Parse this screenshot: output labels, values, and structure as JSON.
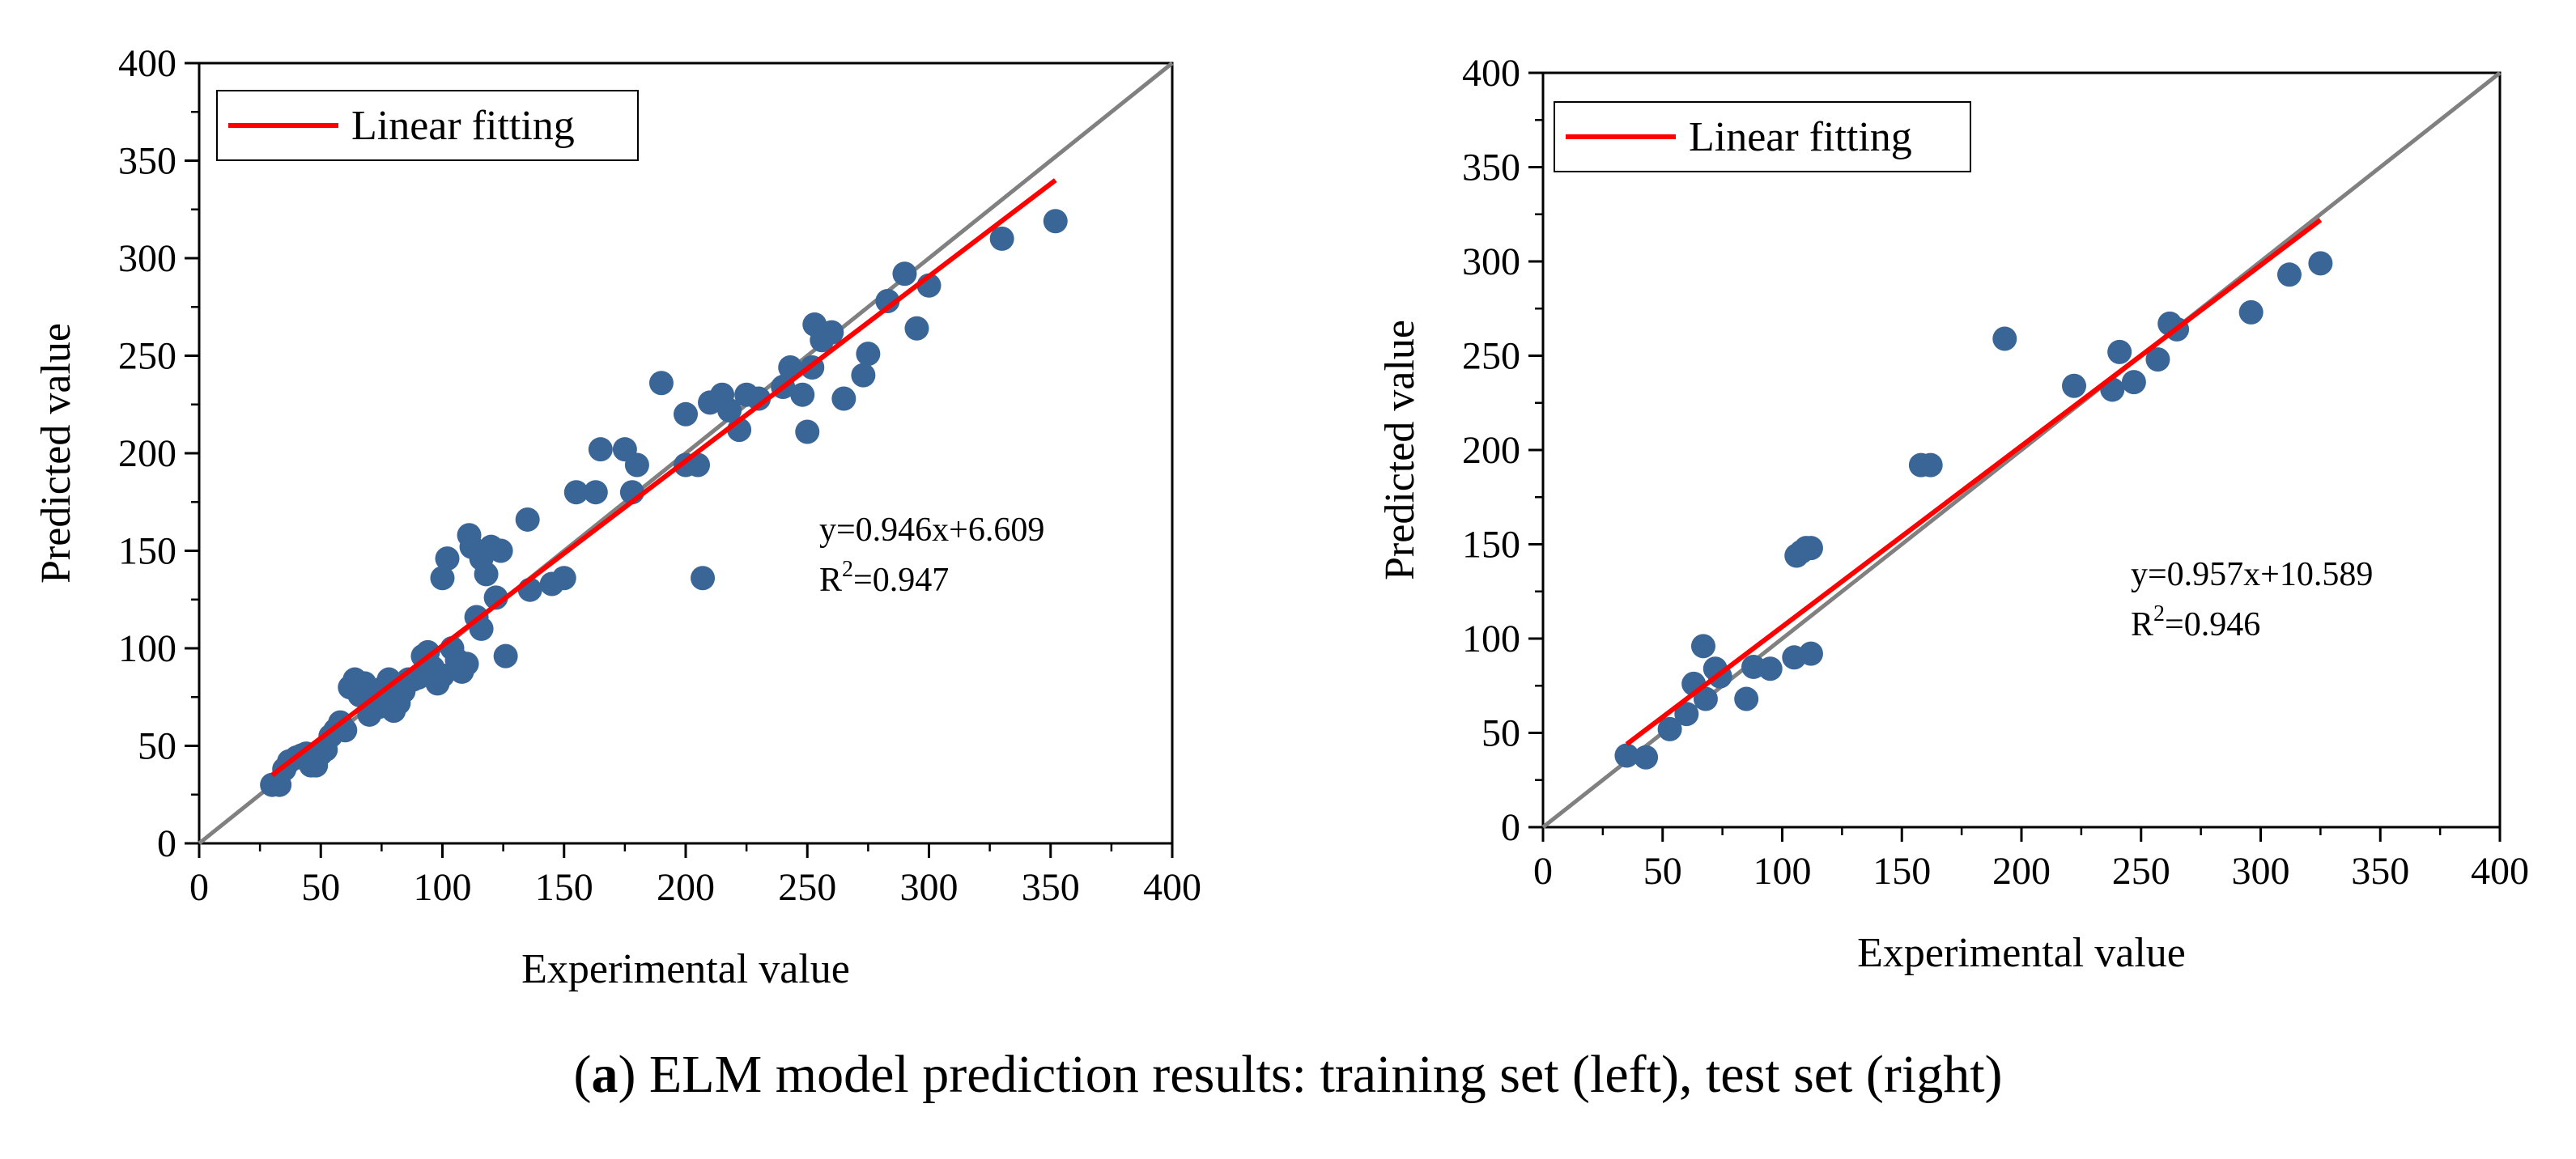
{
  "caption": {
    "open_paren": "(",
    "letter": "a",
    "text": ") ELM model prediction results: training set (left), test set (right)"
  },
  "chart_data": [
    {
      "type": "scatter",
      "title": "",
      "xlabel": "Experimental value",
      "ylabel": "Predicted value",
      "xlim": [
        0,
        400
      ],
      "ylim": [
        0,
        400
      ],
      "ticks": [
        0,
        50,
        100,
        150,
        200,
        250,
        300,
        350,
        400
      ],
      "grid": false,
      "legend": {
        "position": "top-left",
        "entries": [
          "Linear fitting"
        ]
      },
      "colors": {
        "points": "#3a6597",
        "fit": "#ff0000",
        "reference": "#808080"
      },
      "equation": {
        "line1": "y=0.946x+6.609",
        "r2_prefix": "R",
        "r2_sup": "2",
        "r2_value": "=0.947"
      },
      "fit_line": {
        "x": [
          30,
          352
        ],
        "y": [
          35,
          340
        ]
      },
      "reference_line": {
        "x": [
          0,
          400
        ],
        "y": [
          0,
          400
        ]
      },
      "points": [
        [
          30,
          30
        ],
        [
          33,
          30
        ],
        [
          35,
          38
        ],
        [
          37,
          42
        ],
        [
          40,
          44
        ],
        [
          42,
          45
        ],
        [
          44,
          46
        ],
        [
          46,
          40
        ],
        [
          48,
          40
        ],
        [
          50,
          46
        ],
        [
          52,
          48
        ],
        [
          54,
          55
        ],
        [
          56,
          58
        ],
        [
          58,
          62
        ],
        [
          60,
          58
        ],
        [
          62,
          80
        ],
        [
          64,
          84
        ],
        [
          66,
          76
        ],
        [
          68,
          82
        ],
        [
          70,
          66
        ],
        [
          72,
          78
        ],
        [
          74,
          70
        ],
        [
          76,
          80
        ],
        [
          78,
          84
        ],
        [
          80,
          68
        ],
        [
          82,
          72
        ],
        [
          84,
          78
        ],
        [
          86,
          84
        ],
        [
          88,
          84
        ],
        [
          90,
          85
        ],
        [
          92,
          96
        ],
        [
          94,
          98
        ],
        [
          96,
          90
        ],
        [
          98,
          82
        ],
        [
          100,
          86
        ],
        [
          100,
          136
        ],
        [
          102,
          146
        ],
        [
          104,
          100
        ],
        [
          106,
          94
        ],
        [
          108,
          88
        ],
        [
          110,
          92
        ],
        [
          111,
          158
        ],
        [
          112,
          152
        ],
        [
          114,
          116
        ],
        [
          116,
          110
        ],
        [
          116,
          146
        ],
        [
          118,
          138
        ],
        [
          120,
          152
        ],
        [
          122,
          126
        ],
        [
          124,
          150
        ],
        [
          126,
          96
        ],
        [
          135,
          166
        ],
        [
          136,
          130
        ],
        [
          145,
          133
        ],
        [
          150,
          136
        ],
        [
          155,
          180
        ],
        [
          163,
          180
        ],
        [
          165,
          202
        ],
        [
          175,
          202
        ],
        [
          178,
          180
        ],
        [
          180,
          194
        ],
        [
          190,
          236
        ],
        [
          200,
          194
        ],
        [
          200,
          220
        ],
        [
          205,
          194
        ],
        [
          207,
          136
        ],
        [
          210,
          226
        ],
        [
          215,
          230
        ],
        [
          218,
          222
        ],
        [
          222,
          212
        ],
        [
          225,
          230
        ],
        [
          230,
          228
        ],
        [
          240,
          234
        ],
        [
          243,
          244
        ],
        [
          248,
          230
        ],
        [
          250,
          211
        ],
        [
          252,
          244
        ],
        [
          253,
          266
        ],
        [
          256,
          258
        ],
        [
          260,
          262
        ],
        [
          265,
          228
        ],
        [
          273,
          240
        ],
        [
          275,
          251
        ],
        [
          283,
          278
        ],
        [
          290,
          292
        ],
        [
          295,
          264
        ],
        [
          300,
          286
        ],
        [
          330,
          310
        ],
        [
          352,
          319
        ]
      ]
    },
    {
      "type": "scatter",
      "title": "",
      "xlabel": "Experimental value",
      "ylabel": "Predicted value",
      "xlim": [
        0,
        400
      ],
      "ylim": [
        0,
        400
      ],
      "ticks": [
        0,
        50,
        100,
        150,
        200,
        250,
        300,
        350,
        400
      ],
      "grid": false,
      "legend": {
        "position": "top-left",
        "entries": [
          "Linear fitting"
        ]
      },
      "colors": {
        "points": "#3a6597",
        "fit": "#ff0000",
        "reference": "#808080"
      },
      "equation": {
        "line1": "y=0.957x+10.589",
        "r2_prefix": "R",
        "r2_sup": "2",
        "r2_value": "=0.946"
      },
      "fit_line": {
        "x": [
          35,
          325
        ],
        "y": [
          44,
          322
        ]
      },
      "reference_line": {
        "x": [
          0,
          400
        ],
        "y": [
          0,
          400
        ]
      },
      "points": [
        [
          35,
          38
        ],
        [
          43,
          37
        ],
        [
          53,
          52
        ],
        [
          60,
          60
        ],
        [
          63,
          76
        ],
        [
          67,
          96
        ],
        [
          68,
          68
        ],
        [
          72,
          84
        ],
        [
          74,
          80
        ],
        [
          85,
          68
        ],
        [
          88,
          85
        ],
        [
          95,
          84
        ],
        [
          105,
          90
        ],
        [
          106,
          144
        ],
        [
          108,
          146
        ],
        [
          110,
          148
        ],
        [
          112,
          148
        ],
        [
          112,
          92
        ],
        [
          158,
          192
        ],
        [
          162,
          192
        ],
        [
          193,
          259
        ],
        [
          222,
          234
        ],
        [
          238,
          232
        ],
        [
          241,
          252
        ],
        [
          247,
          236
        ],
        [
          257,
          248
        ],
        [
          262,
          267
        ],
        [
          265,
          264
        ],
        [
          296,
          273
        ],
        [
          312,
          293
        ],
        [
          325,
          299
        ]
      ]
    }
  ]
}
